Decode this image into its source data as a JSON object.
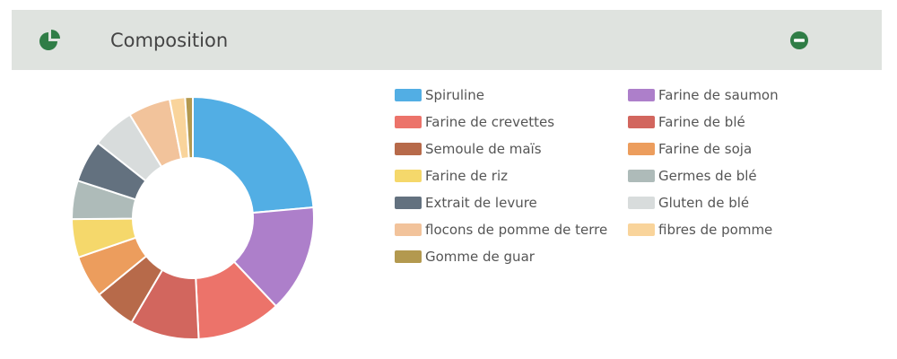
{
  "header": {
    "title": "Composition",
    "icon": "pie-chart-icon",
    "collapse_icon": "minus-circle-icon",
    "accent_color": "#2f7d46"
  },
  "chart_data": {
    "type": "pie",
    "style": "donut",
    "categories": [
      "Spiruline",
      "Farine de saumon",
      "Farine de crevettes",
      "Farine de blé",
      "Semoule de maïs",
      "Farine de soja",
      "Farine de riz",
      "Germes de blé",
      "Extrait de levure",
      "Gluten de blé",
      "flocons de pomme de terre",
      "fibres de pomme",
      "Gomme de guar"
    ],
    "values": [
      23,
      14,
      11,
      9,
      5.5,
      5.5,
      5,
      5,
      5.5,
      5.5,
      5.5,
      2,
      1
    ],
    "colors": [
      "#52aee4",
      "#ad7fca",
      "#ec736a",
      "#d2665e",
      "#b76a4a",
      "#ec9d5d",
      "#f5d86b",
      "#aebbb9",
      "#63717f",
      "#d8dcdc",
      "#f2c39b",
      "#f9d49b",
      "#b3994f"
    ],
    "legend": {
      "placement": "right",
      "columns": 2
    }
  }
}
